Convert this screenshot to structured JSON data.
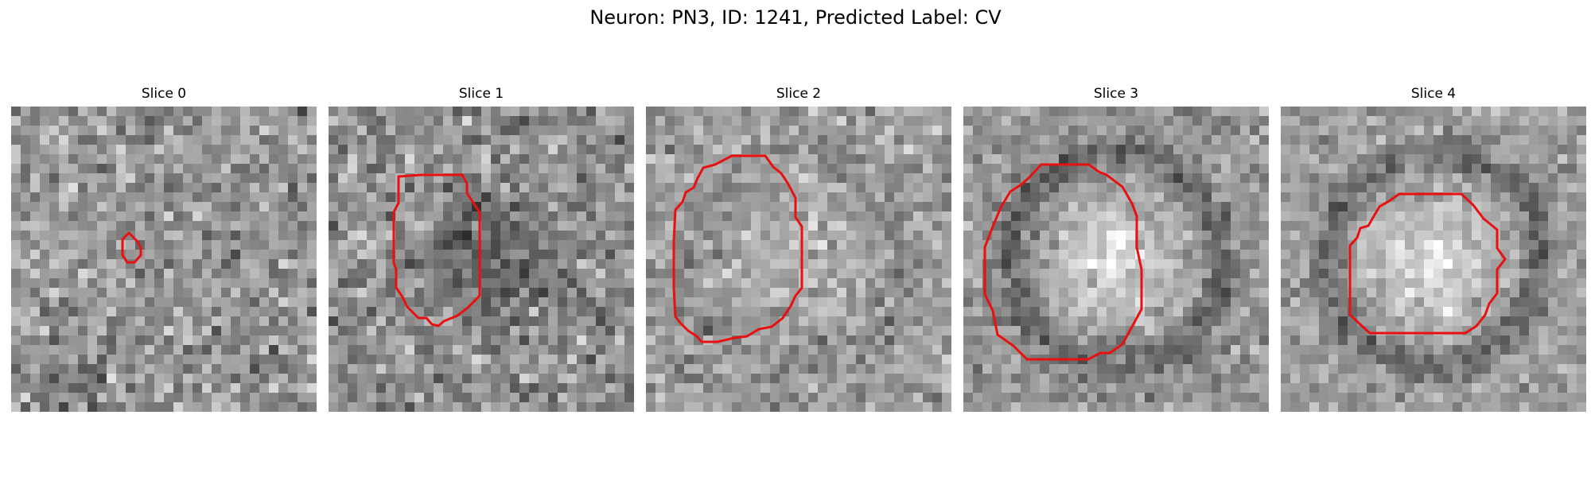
{
  "figure": {
    "title": "Neuron: PN3, ID: 1241, Predicted Label: CV"
  },
  "contour_color": "#e81010",
  "slices": [
    {
      "title": "Slice 0",
      "seed": 11,
      "mean": 150,
      "noise": 40,
      "blob": 0,
      "vignette": 0.35,
      "dark_ring": 0
    },
    {
      "title": "Slice 1",
      "seed": 23,
      "mean": 145,
      "noise": 42,
      "blob": -55,
      "vignette": 0.1,
      "dark_ring": 0
    },
    {
      "title": "Slice 2",
      "seed": 37,
      "mean": 158,
      "noise": 34,
      "blob": 30,
      "vignette": 0.05,
      "dark_ring": 20
    },
    {
      "title": "Slice 3",
      "seed": 51,
      "mean": 150,
      "noise": 30,
      "blob": 75,
      "vignette": 0.05,
      "dark_ring": 70
    },
    {
      "title": "Slice 4",
      "seed": 67,
      "mean": 160,
      "noise": 30,
      "blob": 65,
      "vignette": 0.05,
      "dark_ring": 80
    }
  ]
}
